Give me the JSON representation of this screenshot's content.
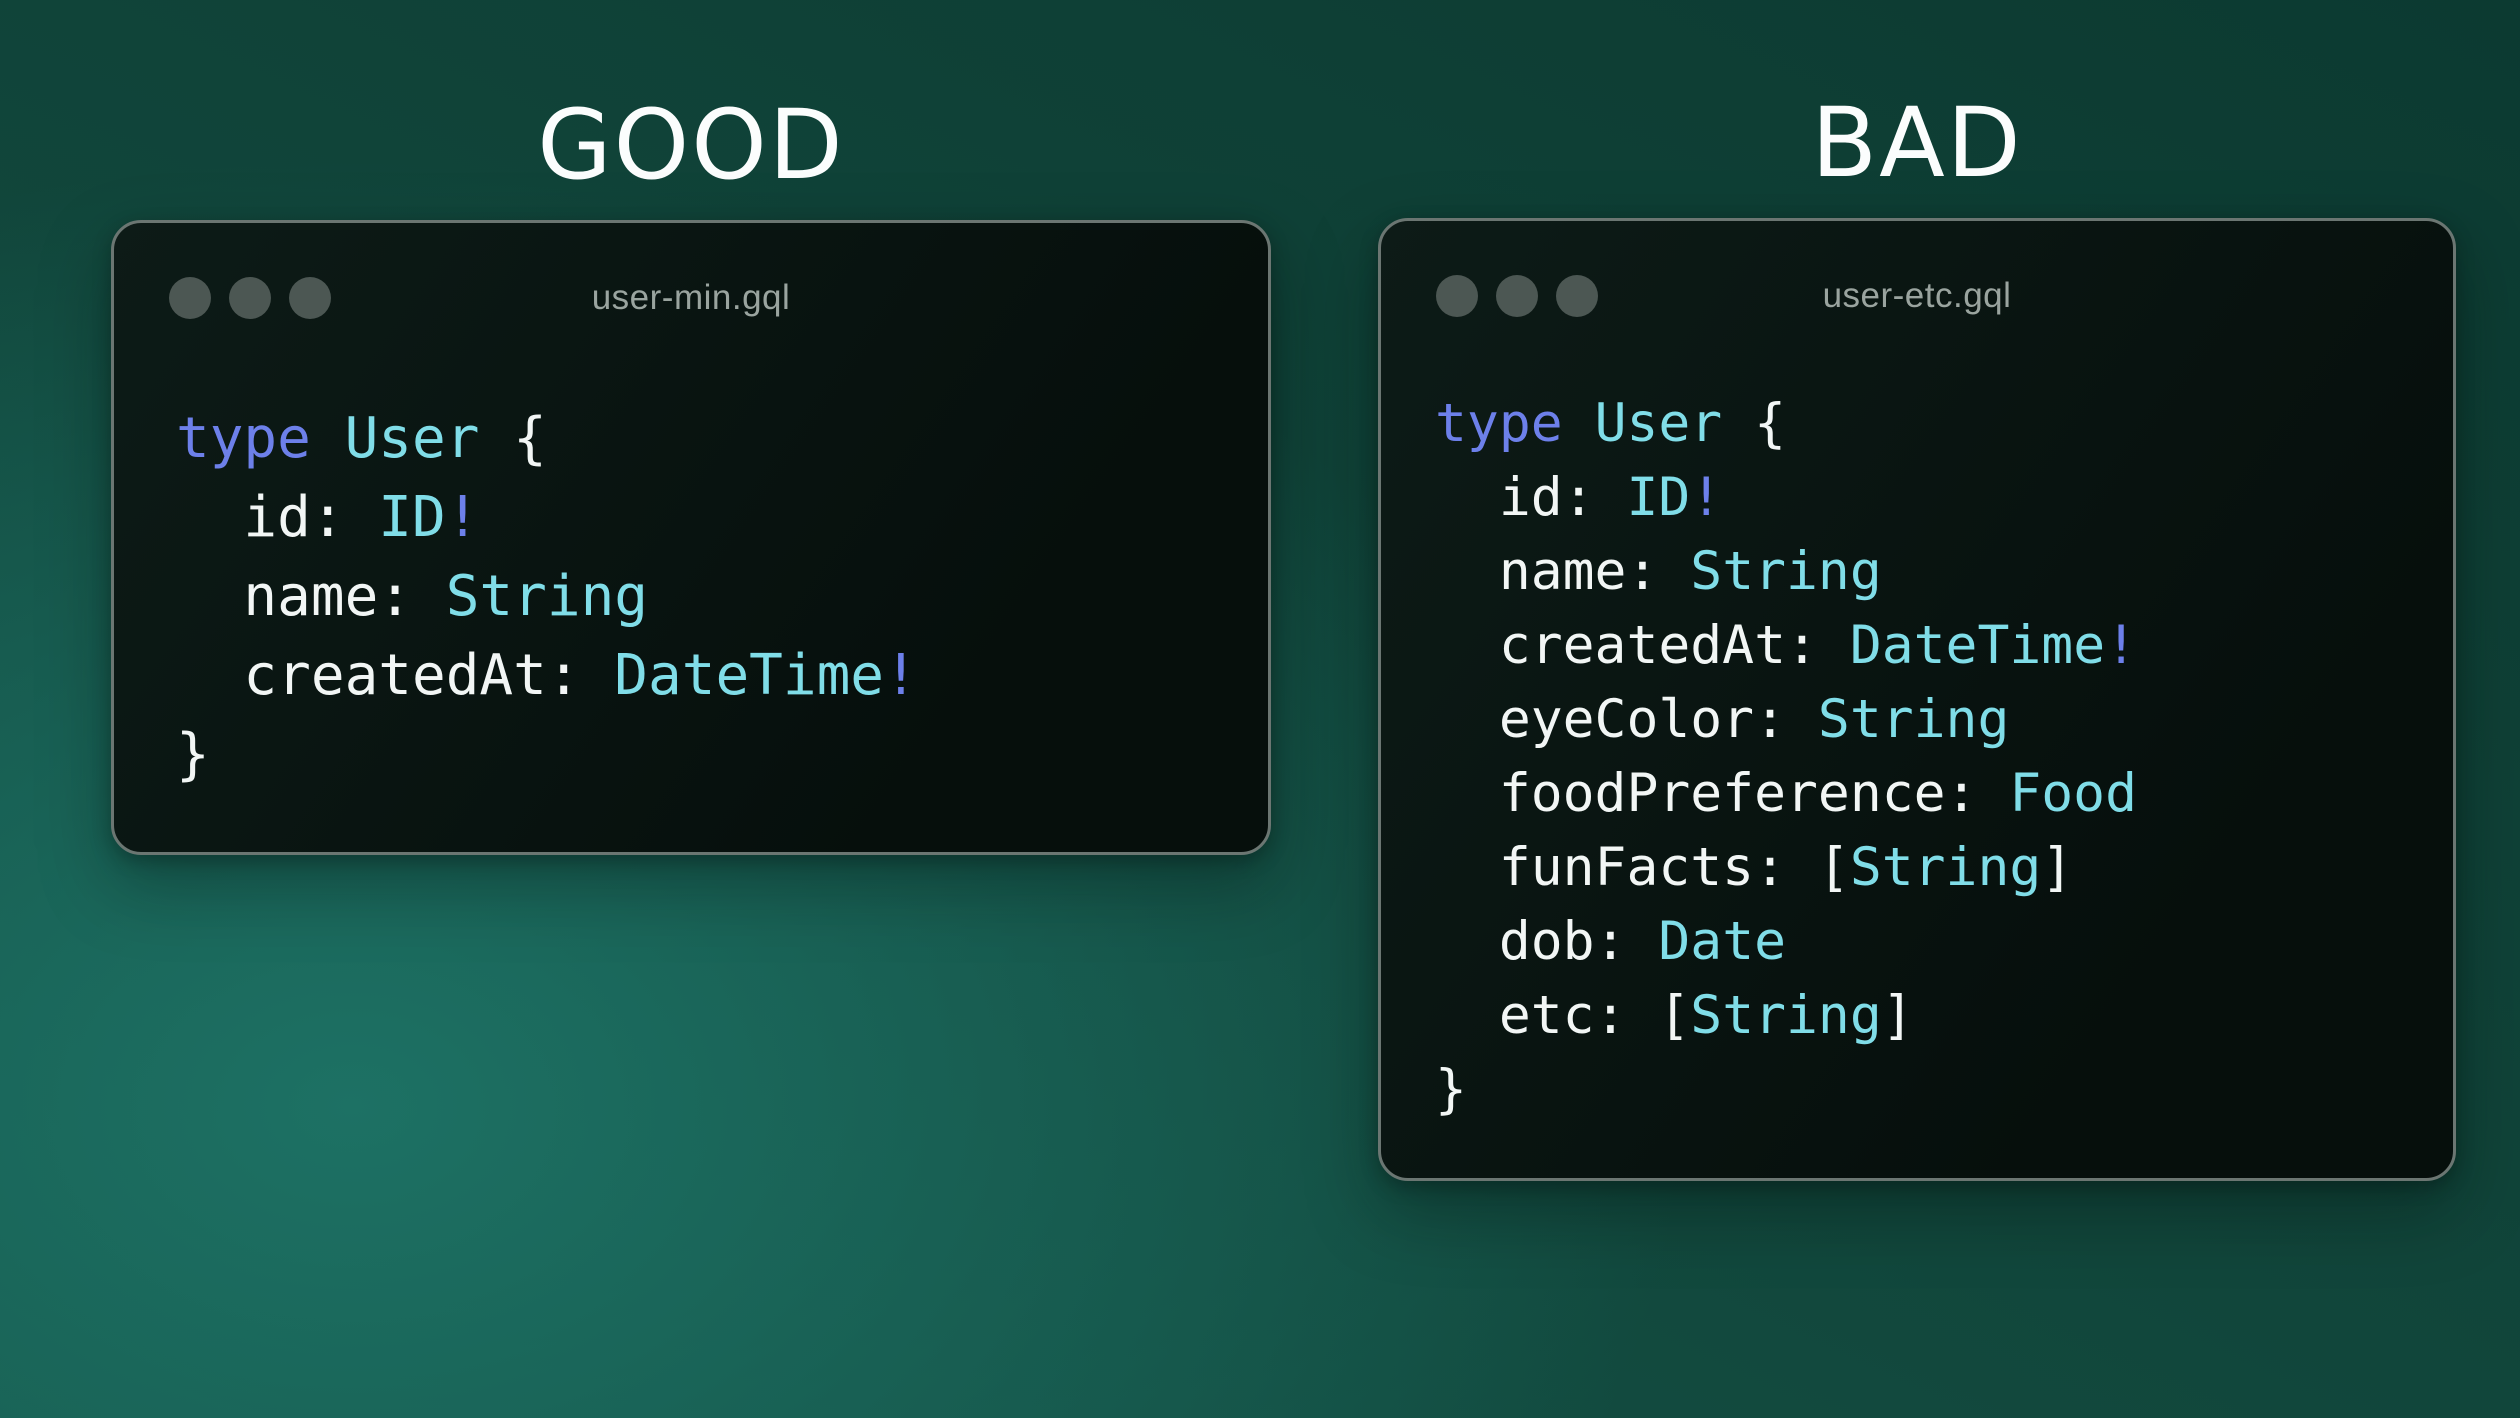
{
  "palette": {
    "background_light": "#1d7164",
    "background_dark": "#0b382f",
    "window_bg_top": "#0d1b17",
    "window_bg_bottom": "#060f0c",
    "window_border": "#6b7672",
    "heading_text": "#fbfdfd",
    "filename_text": "#9aa49f",
    "dot": "#4c5753",
    "code_plain": "#f2f6f5",
    "code_keyword": "#6d80ea",
    "code_type": "#80dde8"
  },
  "panels": [
    {
      "heading": "GOOD",
      "filename": "user-min.gql",
      "lines": [
        [
          {
            "t": "type",
            "c": "kw"
          },
          {
            "t": " ",
            "c": "pl"
          },
          {
            "t": "User",
            "c": "ty"
          },
          {
            "t": " {",
            "c": "pl"
          }
        ],
        [
          {
            "t": "  id: ",
            "c": "pl"
          },
          {
            "t": "ID",
            "c": "ty"
          },
          {
            "t": "!",
            "c": "kw"
          }
        ],
        [
          {
            "t": "  name: ",
            "c": "pl"
          },
          {
            "t": "String",
            "c": "ty"
          }
        ],
        [
          {
            "t": "  createdAt: ",
            "c": "pl"
          },
          {
            "t": "DateTime",
            "c": "ty"
          },
          {
            "t": "!",
            "c": "kw"
          }
        ],
        [
          {
            "t": "}",
            "c": "pl"
          }
        ]
      ]
    },
    {
      "heading": "BAD",
      "filename": "user-etc.gql",
      "lines": [
        [
          {
            "t": "type",
            "c": "kw"
          },
          {
            "t": " ",
            "c": "pl"
          },
          {
            "t": "User",
            "c": "ty"
          },
          {
            "t": " {",
            "c": "pl"
          }
        ],
        [
          {
            "t": "  id: ",
            "c": "pl"
          },
          {
            "t": "ID",
            "c": "ty"
          },
          {
            "t": "!",
            "c": "kw"
          }
        ],
        [
          {
            "t": "  name: ",
            "c": "pl"
          },
          {
            "t": "String",
            "c": "ty"
          }
        ],
        [
          {
            "t": "  createdAt: ",
            "c": "pl"
          },
          {
            "t": "DateTime",
            "c": "ty"
          },
          {
            "t": "!",
            "c": "kw"
          }
        ],
        [
          {
            "t": "  eyeColor: ",
            "c": "pl"
          },
          {
            "t": "String",
            "c": "ty"
          }
        ],
        [
          {
            "t": "  foodPreference: ",
            "c": "pl"
          },
          {
            "t": "Food",
            "c": "ty"
          }
        ],
        [
          {
            "t": "  funFacts: [",
            "c": "pl"
          },
          {
            "t": "String",
            "c": "ty"
          },
          {
            "t": "]",
            "c": "pl"
          }
        ],
        [
          {
            "t": "  dob: ",
            "c": "pl"
          },
          {
            "t": "Date",
            "c": "ty"
          }
        ],
        [
          {
            "t": "  etc: [",
            "c": "pl"
          },
          {
            "t": "String",
            "c": "ty"
          },
          {
            "t": "]",
            "c": "pl"
          }
        ],
        [
          {
            "t": "}",
            "c": "pl"
          }
        ]
      ]
    }
  ]
}
